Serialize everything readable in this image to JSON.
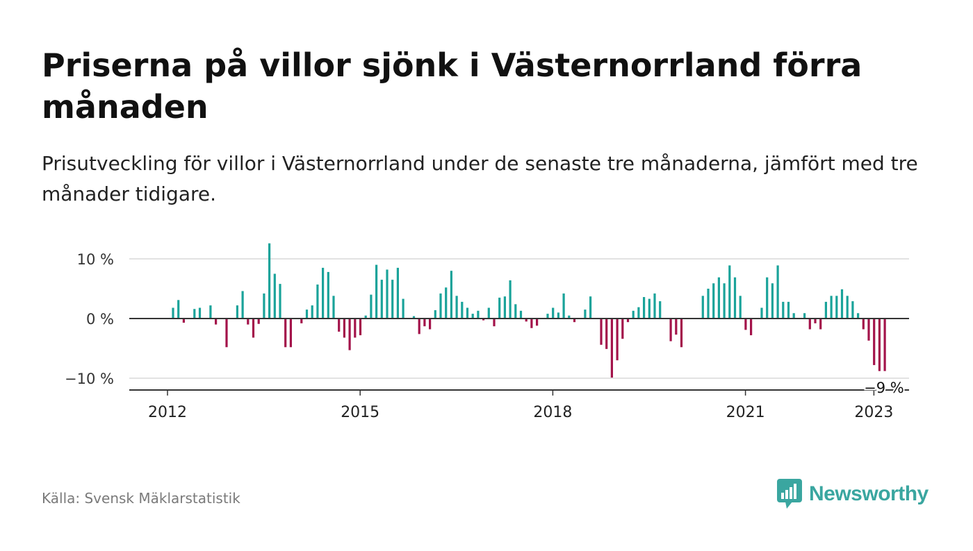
{
  "title": "Priserna på villor sjönk i Västernorrland förra månaden",
  "subtitle": "Prisutveckling för villor i Västernorrland under de senaste tre månaderna, jämfört med tre månader tidigare.",
  "source": "Källa: Svensk Mäklarstatistik",
  "brand": "Newsworthy",
  "colors": {
    "positive": "#1aa39a",
    "negative": "#a3134a",
    "grid": "#d9d9d9",
    "axis": "#333333",
    "brand": "#3aa6a0"
  },
  "chart_data": {
    "type": "bar",
    "title": "Priserna på villor sjönk i Västernorrland förra månaden",
    "subtitle": "Prisutveckling för villor i Västernorrland under de senaste tre månaderna, jämfört med tre månader tidigare.",
    "xlabel": "",
    "ylabel": "",
    "unit": "%",
    "ylim": [
      -12,
      13
    ],
    "yticks": [
      {
        "value": 10,
        "label": "10 %"
      },
      {
        "value": 0,
        "label": "0 %"
      },
      {
        "value": -10,
        "label": "−10 %"
      }
    ],
    "xticks": [
      "2012",
      "2015",
      "2018",
      "2021",
      "2023"
    ],
    "x_start": "2012-01",
    "x_end": "2023-04",
    "grid": true,
    "last_value_label": "−9 %",
    "series": [
      {
        "values": [
          1.8,
          3.1,
          -0.7,
          0,
          1.6,
          1.8,
          0,
          2.2,
          -1.0,
          0,
          -4.8,
          0,
          2.2,
          4.6,
          -1.0,
          -3.2,
          -0.9,
          4.2,
          12.6,
          7.5,
          5.8,
          -4.8,
          -4.8,
          0,
          -0.8,
          1.5,
          2.2,
          5.7,
          8.5,
          7.8,
          3.8,
          -2.2,
          -3.2,
          -5.3,
          -3.2,
          -2.8,
          0.5,
          4.0,
          9.0,
          6.5,
          8.2,
          6.5,
          8.5,
          3.3,
          0,
          0.4,
          -2.6,
          -1.3,
          -1.8,
          1.4,
          4.2,
          5.2,
          8.0,
          3.8,
          2.8,
          1.8,
          0.8,
          1.3,
          -0.3,
          1.8,
          -1.3,
          3.5,
          3.7,
          6.4,
          2.4,
          1.3,
          -0.5,
          -1.6,
          -1.2,
          0,
          0.8,
          1.8,
          1.0,
          4.2,
          0.5,
          -0.6,
          0,
          1.5,
          3.7,
          0,
          -4.4,
          -5.1,
          -9.9,
          -7.0,
          -3.4,
          -0.6,
          1.3,
          1.9,
          3.6,
          3.3,
          4.2,
          2.9,
          0,
          -3.8,
          -2.7,
          -4.8,
          0,
          0,
          0,
          3.8,
          5.0,
          5.9,
          6.9,
          5.9,
          8.9,
          6.9,
          3.8,
          -1.9,
          -2.8,
          0,
          1.8,
          6.9,
          5.9,
          8.9,
          2.8,
          2.8,
          0.9,
          0,
          0.9,
          -1.8,
          -0.8,
          -1.8,
          2.8,
          3.8,
          3.8,
          4.9,
          3.8,
          2.9,
          0.9,
          -1.8,
          -3.7,
          -7.8,
          -8.8,
          -8.8
        ]
      }
    ]
  }
}
